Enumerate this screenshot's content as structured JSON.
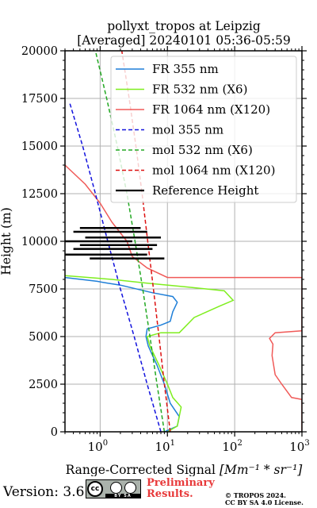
{
  "chart_data": {
    "type": "line",
    "title": "pollyxt_tropos at Leipzig",
    "subtitle": "[Averaged] 20240101 05:36-05:59",
    "xlabel": "Range-Corrected Signal",
    "xlabel_unit_html": "[Mm⁻¹ * sr⁻¹]",
    "ylabel": "Height (m)",
    "xscale": "log",
    "xlim": [
      0.3,
      1000
    ],
    "ylim": [
      0,
      20000
    ],
    "x_ticks": [
      {
        "v": 1,
        "b": "10",
        "e": "0"
      },
      {
        "v": 10,
        "b": "10",
        "e": "1"
      },
      {
        "v": 100,
        "b": "10",
        "e": "2"
      },
      {
        "v": 1000,
        "b": "10",
        "e": "3"
      }
    ],
    "y_ticks": [
      "0",
      "2500",
      "5000",
      "7500",
      "10000",
      "12500",
      "15000",
      "17500",
      "20000"
    ],
    "grid": true,
    "legend_position": "top-right",
    "series": [
      {
        "name": "FR 355 nm",
        "color": "#1f7fd8",
        "dash": "solid",
        "points": [
          [
            9,
            0
          ],
          [
            14,
            300
          ],
          [
            15,
            800
          ],
          [
            11,
            1500
          ],
          [
            9,
            2500
          ],
          [
            7,
            3500
          ],
          [
            5.2,
            4500
          ],
          [
            4.8,
            5000
          ],
          [
            5,
            5400
          ],
          [
            8,
            5600
          ],
          [
            11,
            5800
          ],
          [
            12,
            6300
          ],
          [
            14,
            6800
          ],
          [
            12,
            7100
          ],
          [
            6,
            7300
          ],
          [
            2,
            7700
          ],
          [
            1.3,
            7800
          ],
          [
            0.9,
            7900
          ],
          [
            0.3,
            8100
          ]
        ]
      },
      {
        "name": "FR 532 nm (X6)",
        "color": "#7fee1f",
        "dash": "solid",
        "points": [
          [
            10,
            0
          ],
          [
            14,
            300
          ],
          [
            16,
            1300
          ],
          [
            12,
            1800
          ],
          [
            10,
            2500
          ],
          [
            7.5,
            3500
          ],
          [
            5.5,
            4500
          ],
          [
            5,
            5000
          ],
          [
            8,
            5200
          ],
          [
            15,
            5200
          ],
          [
            25,
            6000
          ],
          [
            60,
            6600
          ],
          [
            95,
            6900
          ],
          [
            70,
            7400
          ],
          [
            20,
            7600
          ],
          [
            5,
            7800
          ],
          [
            1.5,
            8000
          ],
          [
            0.3,
            8200
          ]
        ]
      },
      {
        "name": "FR 1064 nm (X120)",
        "color": "#f05a58",
        "dash": "solid",
        "points": [
          [
            1000,
            0
          ],
          [
            1000,
            1700
          ],
          [
            700,
            1800
          ],
          [
            500,
            2500
          ],
          [
            400,
            3000
          ],
          [
            360,
            4000
          ],
          [
            370,
            4600
          ],
          [
            330,
            4900
          ],
          [
            400,
            5200
          ],
          [
            1000,
            5300
          ],
          [
            1000,
            8100
          ],
          [
            10,
            8100
          ],
          [
            5,
            8600
          ],
          [
            3,
            9200
          ],
          [
            2.5,
            10000
          ],
          [
            1.5,
            11000
          ],
          [
            1,
            12000
          ],
          [
            0.6,
            13000
          ],
          [
            0.3,
            14000
          ]
        ]
      },
      {
        "name": "mol 355 nm",
        "color": "#1212dd",
        "dash": "dashed",
        "points": [
          [
            8,
            0
          ],
          [
            5,
            2500
          ],
          [
            3.2,
            5000
          ],
          [
            2,
            7500
          ],
          [
            1.3,
            10000
          ],
          [
            0.85,
            12500
          ],
          [
            0.55,
            15000
          ],
          [
            0.35,
            17300
          ]
        ]
      },
      {
        "name": "mol 532 nm (X6)",
        "color": "#22a822",
        "dash": "dashed",
        "points": [
          [
            9,
            0
          ],
          [
            7,
            2500
          ],
          [
            5.5,
            5000
          ],
          [
            4.3,
            7500
          ],
          [
            3.3,
            10000
          ],
          [
            2.5,
            12500
          ],
          [
            1.8,
            15000
          ],
          [
            1.25,
            17500
          ],
          [
            0.85,
            20000
          ]
        ]
      },
      {
        "name": "mol 1064 nm (X120)",
        "color": "#dd1111",
        "dash": "dashed",
        "points": [
          [
            11,
            0
          ],
          [
            9,
            2500
          ],
          [
            7.5,
            5000
          ],
          [
            6.2,
            7500
          ],
          [
            5.1,
            10000
          ],
          [
            4.2,
            12500
          ],
          [
            3.4,
            15000
          ],
          [
            2.7,
            17500
          ],
          [
            2.1,
            20000
          ]
        ]
      },
      {
        "name": "Reference Height",
        "color": "#000000",
        "dash": "solid",
        "segments": [
          [
            0.5,
            4,
            10700
          ],
          [
            0.4,
            5,
            10500
          ],
          [
            0.6,
            8,
            10200
          ],
          [
            0.3,
            3,
            10000
          ],
          [
            0.5,
            7,
            9800
          ],
          [
            0.4,
            6,
            9600
          ],
          [
            0.3,
            5,
            9300
          ],
          [
            0.7,
            9,
            9100
          ]
        ]
      }
    ]
  },
  "footer": {
    "version": "Version: 3.6",
    "preliminary_line1": "Preliminary",
    "preliminary_line2": "Results.",
    "copyright_line1": "© TROPOS 2024.",
    "copyright_line2": "CC BY SA 4.0 License.",
    "license_badge": {
      "cc": "cc",
      "by": "BY",
      "sa": "SA"
    }
  }
}
